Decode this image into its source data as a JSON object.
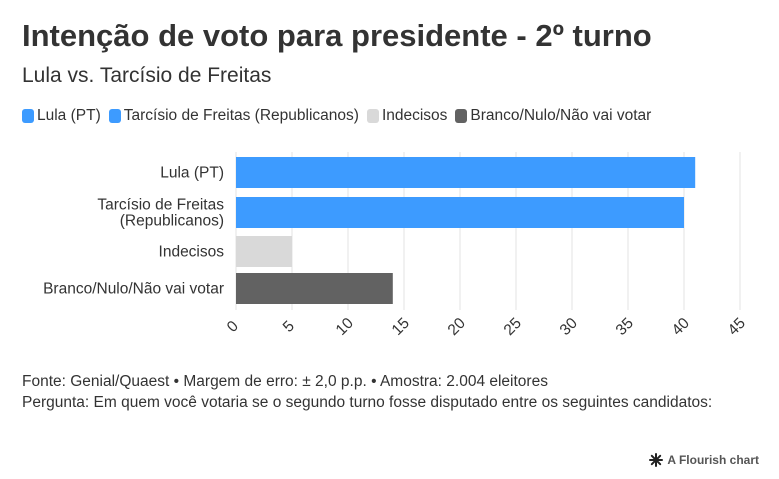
{
  "title": "Intenção de voto para presidente - 2º turno",
  "subtitle": "Lula vs. Tarcísio de Freitas",
  "legend": [
    {
      "label": "Lula (PT)",
      "color": "#3d9bff"
    },
    {
      "label": "Tarcísio de Freitas (Republicanos)",
      "color": "#3d9bff"
    },
    {
      "label": "Indecisos",
      "color": "#d9d9d9"
    },
    {
      "label": "Branco/Nulo/Não vai votar",
      "color": "#626262"
    }
  ],
  "chart_data": {
    "type": "bar",
    "orientation": "horizontal",
    "categories": [
      [
        "Lula (PT)"
      ],
      [
        "Tarcísio de Freitas",
        "(Republicanos)"
      ],
      [
        "Indecisos"
      ],
      [
        "Branco/Nulo/Não vai votar"
      ]
    ],
    "values": [
      41,
      40,
      5,
      14
    ],
    "colors": [
      "#3d9bff",
      "#3d9bff",
      "#d9d9d9",
      "#626262"
    ],
    "xlim": [
      0,
      45
    ],
    "xticks": [
      0,
      5,
      10,
      15,
      20,
      25,
      30,
      35,
      40,
      45
    ],
    "grid": true
  },
  "footer": {
    "source": "Fonte: Genial/Quaest • Margem de erro: ± 2,0 p.p. • Amostra: 2.004 eleitores",
    "question": "Pergunta: Em quem você votaria se o segundo turno fosse disputado entre os seguintes candidatos:"
  },
  "brand": {
    "label": "A Flourish chart",
    "icon": "flourish-logo-icon"
  }
}
